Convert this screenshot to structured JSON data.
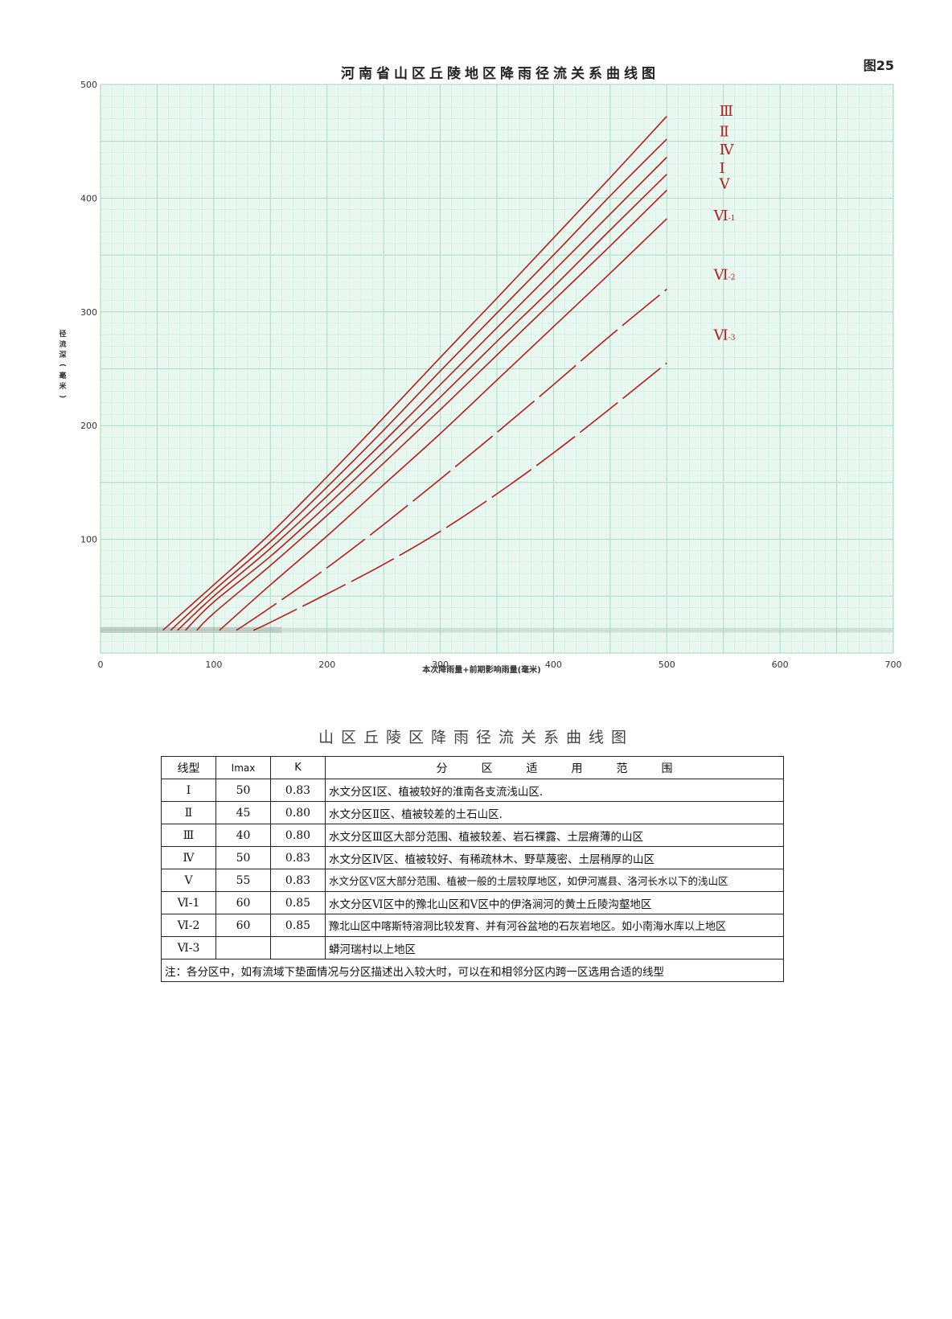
{
  "chart_data": {
    "type": "line",
    "title": "河南省山区丘陵地区降雨径流关系曲线图",
    "figure_label": "图25",
    "xlabel": "本次降雨量+前期影响雨量(毫米)",
    "ylabel": "径流深(毫米)",
    "xlim": [
      0,
      700
    ],
    "ylim": [
      0,
      500
    ],
    "x_ticks": [
      "0",
      "100",
      "200",
      "300",
      "400",
      "500",
      "600",
      "700"
    ],
    "y_ticks": [
      "100",
      "200",
      "300",
      "400",
      "500"
    ],
    "grid": true,
    "colors": {
      "grid_minor": "#cdeee0",
      "grid_major": "#a9dcc4",
      "curve": "#b71c1c",
      "plot_bg": "#e8f8f1"
    },
    "series": [
      {
        "name": "Ⅲ",
        "style": "solid",
        "x": [
          55,
          100,
          150,
          200,
          250,
          300,
          350,
          400,
          450,
          500,
          545
        ],
        "y": [
          20,
          60,
          105,
          155,
          207,
          260,
          312,
          365,
          418,
          472,
          478
        ]
      },
      {
        "name": "Ⅱ",
        "style": "solid",
        "x": [
          62,
          100,
          150,
          200,
          250,
          300,
          350,
          400,
          450,
          500,
          545
        ],
        "y": [
          20,
          55,
          98,
          146,
          196,
          248,
          299,
          350,
          402,
          452,
          460
        ]
      },
      {
        "name": "Ⅳ",
        "style": "solid",
        "x": [
          68,
          100,
          150,
          200,
          250,
          300,
          350,
          400,
          450,
          500,
          545
        ],
        "y": [
          20,
          50,
          92,
          138,
          186,
          236,
          286,
          336,
          386,
          436,
          444
        ]
      },
      {
        "name": "Ⅰ",
        "style": "solid",
        "x": [
          75,
          100,
          150,
          200,
          250,
          300,
          350,
          400,
          450,
          500,
          545
        ],
        "y": [
          20,
          45,
          85,
          130,
          177,
          225,
          274,
          322,
          372,
          421,
          428
        ]
      },
      {
        "name": "Ⅴ",
        "style": "solid",
        "x": [
          85,
          100,
          150,
          200,
          250,
          300,
          350,
          400,
          450,
          500,
          545
        ],
        "y": [
          20,
          35,
          77,
          121,
          167,
          214,
          262,
          310,
          358,
          407,
          414
        ]
      },
      {
        "name": "Ⅵ-1",
        "style": "solid",
        "x": [
          105,
          150,
          200,
          250,
          300,
          350,
          400,
          450,
          500,
          540
        ],
        "y": [
          20,
          60,
          103,
          148,
          193,
          240,
          287,
          334,
          382,
          386
        ]
      },
      {
        "name": "Ⅵ-2",
        "style": "dashed",
        "x": [
          120,
          150,
          200,
          250,
          300,
          350,
          400,
          450,
          500,
          540
        ],
        "y": [
          20,
          40,
          75,
          113,
          153,
          194,
          236,
          279,
          320,
          334
        ]
      },
      {
        "name": "Ⅵ-3",
        "style": "dashed",
        "x": [
          135,
          150,
          200,
          250,
          300,
          350,
          400,
          450,
          500,
          540
        ],
        "y": [
          20,
          27,
          52,
          78,
          107,
          140,
          176,
          215,
          255,
          281
        ]
      }
    ]
  },
  "table": {
    "title": "山区丘陵区降雨径流关系曲线图",
    "headers": {
      "type": "线型",
      "imax": "Imax",
      "k": "K",
      "scope": [
        "分",
        "区",
        "适",
        "用",
        "范",
        "围"
      ]
    },
    "rows": [
      {
        "type": "Ⅰ",
        "imax": "50",
        "k": "0.83",
        "desc": "水文分区Ⅰ区、植被较好的淮南各支流浅山区."
      },
      {
        "type": "Ⅱ",
        "imax": "45",
        "k": "0.80",
        "desc": "水文分区Ⅱ区、植被较差的土石山区."
      },
      {
        "type": "Ⅲ",
        "imax": "40",
        "k": "0.80",
        "desc": "水文分区Ⅲ区大部分范围、植被较差、岩石裸露、土层瘠薄的山区"
      },
      {
        "type": "Ⅳ",
        "imax": "50",
        "k": "0.83",
        "desc": "水文分区Ⅳ区、植被较好、有稀疏林木、野草蔑密、土层稍厚的山区"
      },
      {
        "type": "Ⅴ",
        "imax": "55",
        "k": "0.83",
        "desc": "水文分区Ⅴ区大部分范围、植被一般的土层较厚地区，如伊河嵩县、洛河长水以下的浅山区"
      },
      {
        "type": "Ⅵ-1",
        "imax": "60",
        "k": "0.85",
        "desc": "水文分区Ⅵ区中的豫北山区和Ⅴ区中的伊洛涧河的黄土丘陵沟壑地区"
      },
      {
        "type": "Ⅵ-2",
        "imax": "60",
        "k": "0.85",
        "desc": "豫北山区中喀斯特溶洞比较发育、并有河谷盆地的石灰岩地区。如小南海水库以上地区"
      },
      {
        "type": "Ⅵ-3",
        "imax": "",
        "k": "",
        "desc": "蟒河瑞村以上地区"
      }
    ],
    "note": "注：各分区中，如有流域下垫面情况与分区描述出入较大时，可以在和相邻分区内跨一区选用合适的线型"
  }
}
